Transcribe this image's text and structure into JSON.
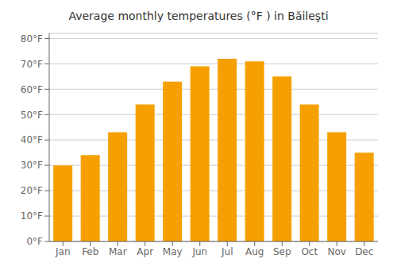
{
  "chart_data": {
    "type": "bar",
    "title": "Average monthly temperatures (°F ) in Băileşti",
    "categories": [
      "Jan",
      "Feb",
      "Mar",
      "Apr",
      "May",
      "Jun",
      "Jul",
      "Aug",
      "Sep",
      "Oct",
      "Nov",
      "Dec"
    ],
    "values": [
      30,
      34,
      43,
      54,
      63,
      69,
      72,
      71,
      65,
      54,
      43,
      35
    ],
    "color": "#F5A000",
    "ylim": [
      0,
      82
    ],
    "yticks": [
      {
        "value": 0,
        "label": "0°F"
      },
      {
        "value": 10,
        "label": "10°F"
      },
      {
        "value": 20,
        "label": "20°F"
      },
      {
        "value": 30,
        "label": "30°F"
      },
      {
        "value": 40,
        "label": "40°F"
      },
      {
        "value": 50,
        "label": "50°F"
      },
      {
        "value": 60,
        "label": "60°F"
      },
      {
        "value": 70,
        "label": "70°F"
      },
      {
        "value": 80,
        "label": "80°F"
      }
    ],
    "grid": true
  }
}
